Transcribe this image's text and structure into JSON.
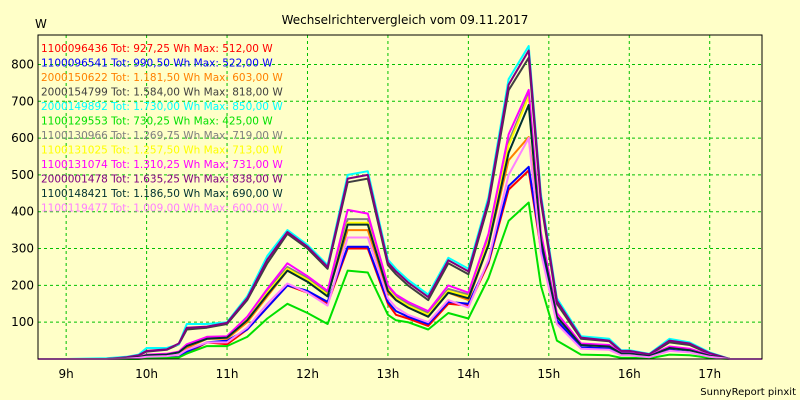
{
  "chart_data": {
    "type": "line",
    "title": "Wechselrichtervergleich vom 09.11.2017",
    "yunit": "W",
    "ylim": [
      0,
      880
    ],
    "yticks": [
      100,
      200,
      300,
      400,
      500,
      600,
      700,
      800
    ],
    "xlim": [
      8.65,
      17.65
    ],
    "xticks": [
      9,
      10,
      11,
      12,
      13,
      14,
      15,
      16,
      17
    ],
    "xtick_labels": [
      "9h",
      "10h",
      "11h",
      "12h",
      "13h",
      "14h",
      "15h",
      "16h",
      "17h"
    ],
    "grid": true,
    "legend_placement": "top-left",
    "credit": "SunnyReport pinxit",
    "x": [
      8.65,
      9.0,
      9.5,
      9.75,
      9.9,
      10.0,
      10.25,
      10.4,
      10.5,
      10.75,
      11.0,
      11.25,
      11.5,
      11.75,
      12.0,
      12.25,
      12.5,
      12.75,
      13.0,
      13.1,
      13.25,
      13.5,
      13.75,
      14.0,
      14.25,
      14.5,
      14.75,
      14.9,
      15.1,
      15.4,
      15.75,
      15.9,
      16.0,
      16.25,
      16.5,
      16.75,
      17.0,
      17.25,
      17.5,
      17.65
    ],
    "series": [
      {
        "name": "1100096436 Tot: 927,25 Wh Max: 512,00 W",
        "color": "#ff0000",
        "values": [
          0,
          0,
          0,
          0,
          2,
          5,
          5,
          5,
          15,
          45,
          40,
          80,
          140,
          200,
          180,
          150,
          300,
          300,
          150,
          120,
          110,
          90,
          150,
          145,
          260,
          460,
          512,
          300,
          100,
          30,
          28,
          12,
          12,
          6,
          25,
          20,
          8,
          0,
          0,
          0
        ]
      },
      {
        "name": "1100096541 Tot: 990,50 Wh Max: 522,00 W",
        "color": "#0000ff",
        "values": [
          0,
          0,
          0,
          0,
          2,
          5,
          5,
          5,
          20,
          45,
          50,
          80,
          140,
          200,
          185,
          155,
          305,
          305,
          155,
          130,
          115,
          95,
          155,
          150,
          265,
          470,
          522,
          310,
          105,
          32,
          30,
          14,
          14,
          8,
          28,
          22,
          9,
          0,
          0,
          0
        ]
      },
      {
        "name": "2000150622 Tot: 1.181,50 Wh Max: 603,00 W",
        "color": "#ff8000",
        "values": [
          0,
          0,
          0,
          4,
          8,
          10,
          12,
          18,
          30,
          55,
          55,
          100,
          170,
          240,
          210,
          175,
          350,
          350,
          180,
          160,
          140,
          115,
          180,
          160,
          310,
          540,
          603,
          330,
          120,
          40,
          36,
          16,
          16,
          9,
          32,
          26,
          10,
          0,
          0,
          0
        ]
      },
      {
        "name": "2000154799 Tot: 1.584,00 Wh Max: 818,00 W",
        "color": "#404040",
        "values": [
          0,
          0,
          0,
          5,
          10,
          20,
          25,
          40,
          80,
          85,
          95,
          160,
          260,
          340,
          300,
          245,
          480,
          490,
          255,
          230,
          200,
          160,
          260,
          230,
          420,
          730,
          818,
          430,
          150,
          55,
          48,
          20,
          20,
          12,
          45,
          38,
          14,
          0,
          0,
          0
        ]
      },
      {
        "name": "2000149892 Tot: 1.730,00 Wh Max: 850,00 W",
        "color": "#00ffff",
        "values": [
          0,
          0,
          2,
          6,
          12,
          30,
          30,
          40,
          95,
          95,
          100,
          170,
          280,
          350,
          310,
          255,
          500,
          510,
          270,
          245,
          215,
          175,
          275,
          245,
          440,
          760,
          850,
          450,
          165,
          62,
          55,
          24,
          24,
          14,
          55,
          45,
          18,
          0,
          0,
          0
        ]
      },
      {
        "name": "1100129553 Tot: 730,25 Wh Max: 425,00 W",
        "color": "#00e000",
        "values": [
          0,
          0,
          0,
          0,
          0,
          2,
          3,
          4,
          15,
          35,
          35,
          60,
          110,
          150,
          125,
          95,
          240,
          235,
          120,
          105,
          100,
          80,
          125,
          110,
          220,
          375,
          425,
          200,
          50,
          12,
          10,
          3,
          3,
          2,
          12,
          10,
          3,
          0,
          0,
          0
        ]
      },
      {
        "name": "1100130966 Tot: 1.269,75 Wh Max: 719,00 W",
        "color": "#808080",
        "values": [
          0,
          0,
          0,
          2,
          5,
          10,
          12,
          18,
          35,
          60,
          60,
          110,
          185,
          250,
          220,
          180,
          380,
          380,
          195,
          170,
          150,
          125,
          190,
          175,
          330,
          590,
          719,
          340,
          120,
          40,
          36,
          16,
          16,
          9,
          32,
          26,
          10,
          0,
          0,
          0
        ]
      },
      {
        "name": "1100131025 Tot: 1.257,50 Wh Max: 713,00 W",
        "color": "#ffff00",
        "values": [
          0,
          0,
          0,
          2,
          5,
          10,
          12,
          18,
          35,
          58,
          58,
          108,
          180,
          245,
          215,
          175,
          370,
          370,
          190,
          165,
          145,
          120,
          185,
          170,
          320,
          580,
          713,
          335,
          118,
          38,
          34,
          15,
          15,
          8,
          30,
          24,
          9,
          0,
          0,
          0
        ]
      },
      {
        "name": "1100131074 Tot: 1.310,25 Wh Max: 731,00 W",
        "color": "#ff00ff",
        "values": [
          0,
          0,
          0,
          2,
          5,
          12,
          14,
          20,
          40,
          60,
          62,
          115,
          190,
          260,
          225,
          185,
          405,
          395,
          200,
          175,
          155,
          130,
          200,
          180,
          340,
          610,
          731,
          345,
          125,
          42,
          38,
          17,
          17,
          9,
          34,
          28,
          11,
          0,
          0,
          0
        ]
      },
      {
        "name": "2000001478 Tot: 1.635,25 Wh Max: 838,00 W",
        "color": "#800080",
        "values": [
          0,
          0,
          0,
          5,
          10,
          22,
          26,
          42,
          85,
          88,
          98,
          165,
          270,
          345,
          305,
          250,
          490,
          500,
          262,
          238,
          208,
          168,
          268,
          238,
          430,
          745,
          838,
          440,
          158,
          58,
          50,
          22,
          22,
          13,
          50,
          42,
          16,
          0,
          0,
          0
        ]
      },
      {
        "name": "1100148421 Tot: 1.186,50 Wh Max: 690,00 W",
        "color": "#003030",
        "values": [
          0,
          0,
          0,
          2,
          5,
          10,
          12,
          18,
          35,
          55,
          58,
          105,
          175,
          240,
          210,
          170,
          365,
          365,
          185,
          160,
          140,
          115,
          180,
          165,
          310,
          560,
          690,
          325,
          115,
          38,
          34,
          15,
          15,
          8,
          30,
          24,
          9,
          0,
          0,
          0
        ]
      },
      {
        "name": "1100119477 Tot: 1.009,00 Wh Max: 600,00 W",
        "color": "#ff80ff",
        "values": [
          0,
          0,
          0,
          1,
          3,
          6,
          8,
          12,
          25,
          45,
          45,
          85,
          150,
          205,
          180,
          145,
          330,
          330,
          165,
          140,
          120,
          100,
          160,
          140,
          270,
          500,
          600,
          290,
          95,
          28,
          25,
          10,
          10,
          5,
          22,
          18,
          6,
          0,
          0,
          0
        ]
      }
    ]
  }
}
